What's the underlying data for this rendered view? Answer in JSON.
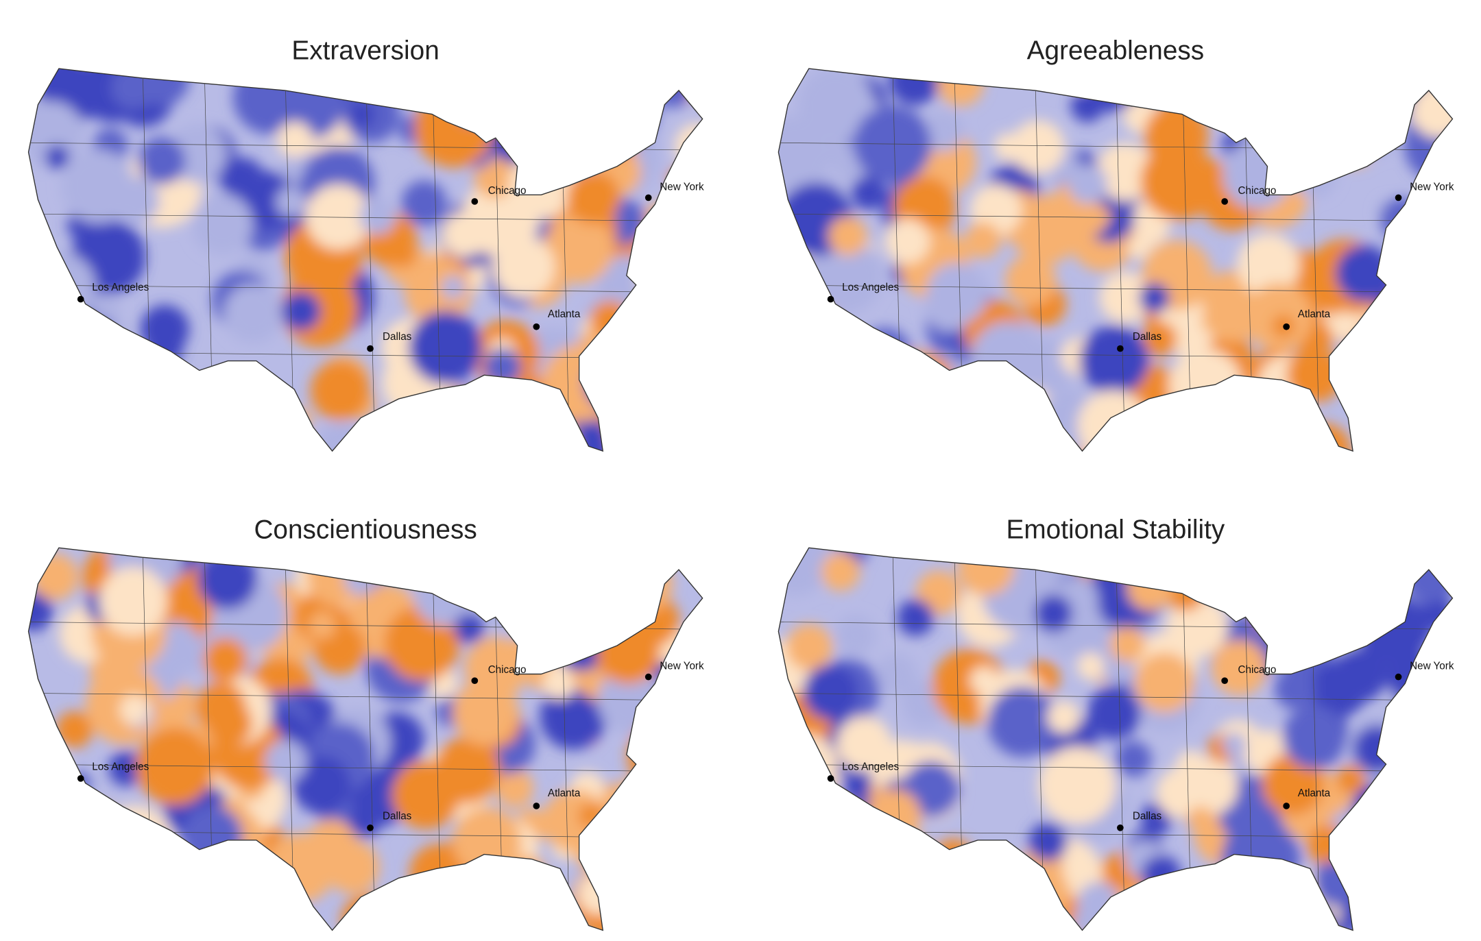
{
  "maps": [
    {
      "title": "Extraversion",
      "cities": [
        "Chicago",
        "New York",
        "Los Angeles",
        "Dallas",
        "Atlanta"
      ]
    },
    {
      "title": "Agreeableness",
      "cities": [
        "Chicago",
        "New York",
        "Los Angeles",
        "Dallas",
        "Atlanta"
      ]
    },
    {
      "title": "Conscientiousness",
      "cities": [
        "Chicago",
        "New York",
        "Los Angeles",
        "Dallas",
        "Atlanta"
      ]
    },
    {
      "title": "Emotional Stability",
      "cities": [
        "Chicago",
        "New York",
        "Los Angeles",
        "Dallas",
        "Atlanta"
      ]
    }
  ]
}
